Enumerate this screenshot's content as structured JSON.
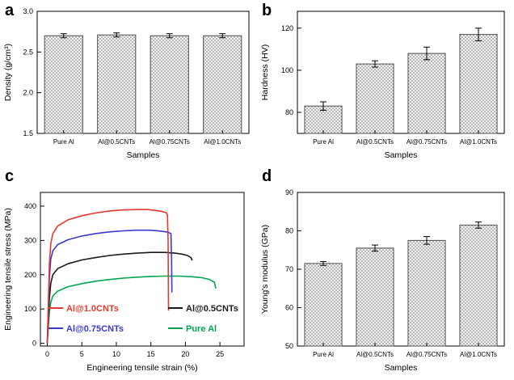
{
  "figure": {
    "background": "#ffffff",
    "panels": [
      {
        "letter": "a"
      },
      {
        "letter": "b"
      },
      {
        "letter": "c"
      },
      {
        "letter": "d"
      }
    ]
  },
  "colors": {
    "axis": "#000000",
    "bar_outline": "#4d4d4d",
    "hatch": "#9e9e9e",
    "error_bar": "#000000"
  },
  "chart_data": [
    {
      "id": "a",
      "type": "bar",
      "categories": [
        "Pure Al",
        "Al@0.5CNTs",
        "Al@0.75CNTs",
        "Al@1.0CNTs"
      ],
      "values": [
        2.7,
        2.71,
        2.7,
        2.7
      ],
      "errors": [
        0.025,
        0.025,
        0.025,
        0.025
      ],
      "xlabel": "Samples",
      "ylabel": "Density (g/cm³)",
      "ylim": [
        1.5,
        3.0
      ],
      "yticks": [
        1.5,
        2.0,
        2.5,
        3.0
      ],
      "ytick_decimals": 1,
      "grid": false
    },
    {
      "id": "b",
      "type": "bar",
      "categories": [
        "Pure Al",
        "Al@0.5CNTs",
        "Al@0.75CNTs",
        "Al@1.0CNTs"
      ],
      "values": [
        83,
        103,
        108,
        117
      ],
      "errors": [
        2,
        1.5,
        3,
        3
      ],
      "xlabel": "Samples",
      "ylabel": "Hardness (HV)",
      "ylim": [
        70,
        128
      ],
      "yticks": [
        80,
        100,
        120
      ],
      "ytick_decimals": 0,
      "grid": false
    },
    {
      "id": "c",
      "type": "line",
      "xlabel": "Engineering tensile strain (%)",
      "ylabel": "Engineering tensile stress (MPa)",
      "xlim": [
        -1,
        28.5
      ],
      "ylim": [
        -8,
        440
      ],
      "xticks": [
        0,
        5,
        10,
        15,
        20,
        25
      ],
      "yticks": [
        0,
        100,
        200,
        300,
        400
      ],
      "legend_position": "lower-left",
      "grid": false,
      "series": [
        {
          "name": "Pure Al",
          "color": "#00a650",
          "points": [
            [
              0,
              0
            ],
            [
              0.15,
              50
            ],
            [
              0.3,
              90
            ],
            [
              0.5,
              120
            ],
            [
              0.8,
              138
            ],
            [
              1.5,
              152
            ],
            [
              3,
              165
            ],
            [
              5,
              174
            ],
            [
              7,
              181
            ],
            [
              9,
              186
            ],
            [
              11,
              190
            ],
            [
              13,
              193
            ],
            [
              15,
              195
            ],
            [
              17,
              196
            ],
            [
              19,
              196
            ],
            [
              21,
              194
            ],
            [
              22.5,
              191
            ],
            [
              23.5,
              186
            ],
            [
              24.2,
              178
            ],
            [
              24.4,
              160
            ]
          ]
        },
        {
          "name": "Al@0.5CNTs",
          "color": "#1a1a1a",
          "points": [
            [
              0,
              0
            ],
            [
              0.15,
              70
            ],
            [
              0.3,
              130
            ],
            [
              0.5,
              175
            ],
            [
              0.8,
              200
            ],
            [
              1.5,
              218
            ],
            [
              3,
              232
            ],
            [
              5,
              243
            ],
            [
              7,
              250
            ],
            [
              9,
              256
            ],
            [
              11,
              260
            ],
            [
              13,
              263
            ],
            [
              15,
              265
            ],
            [
              17,
              265
            ],
            [
              18.5,
              263
            ],
            [
              19.5,
              260
            ],
            [
              20.3,
              256
            ],
            [
              20.8,
              250
            ],
            [
              21,
              242
            ]
          ]
        },
        {
          "name": "Al@0.75CNTs",
          "color": "#3a3ad1",
          "points": [
            [
              0,
              0
            ],
            [
              0.15,
              100
            ],
            [
              0.3,
              190
            ],
            [
              0.5,
              245
            ],
            [
              0.8,
              270
            ],
            [
              1.5,
              288
            ],
            [
              3,
              302
            ],
            [
              5,
              313
            ],
            [
              7,
              320
            ],
            [
              9,
              325
            ],
            [
              11,
              328
            ],
            [
              13,
              330
            ],
            [
              14.5,
              330
            ],
            [
              15.5,
              329
            ],
            [
              16.5,
              327
            ],
            [
              17.5,
              324
            ],
            [
              17.9,
              320
            ],
            [
              18,
              250
            ],
            [
              18.05,
              148
            ]
          ]
        },
        {
          "name": "Al@1.0CNTs",
          "color": "#e8372d",
          "points": [
            [
              0,
              0
            ],
            [
              0.15,
              120
            ],
            [
              0.3,
              230
            ],
            [
              0.5,
              290
            ],
            [
              0.8,
              320
            ],
            [
              1.5,
              342
            ],
            [
              3,
              360
            ],
            [
              5,
              372
            ],
            [
              7,
              380
            ],
            [
              9,
              386
            ],
            [
              11,
              389
            ],
            [
              13,
              390
            ],
            [
              14.5,
              390
            ],
            [
              15.5,
              388
            ],
            [
              16.5,
              385
            ],
            [
              17.2,
              381
            ],
            [
              17.4,
              375
            ],
            [
              17.5,
              300
            ],
            [
              17.55,
              95
            ]
          ]
        }
      ],
      "legend": [
        [
          "Al@1.0CNTs",
          "Al@0.5CNTs"
        ],
        [
          "Al@0.75CNTs",
          "Pure Al"
        ]
      ]
    },
    {
      "id": "d",
      "type": "bar",
      "categories": [
        "Pure Al",
        "Al@0.5CNTs",
        "Al@0.75CNTs",
        "Al@1.0CNTs"
      ],
      "values": [
        71.5,
        75.5,
        77.5,
        81.5
      ],
      "errors": [
        0.5,
        0.8,
        1.0,
        0.8
      ],
      "xlabel": "Samples",
      "ylabel": "Young's modulus (GPa)",
      "ylim": [
        50,
        90
      ],
      "yticks": [
        50,
        60,
        70,
        80,
        90
      ],
      "ytick_decimals": 0,
      "grid": false
    }
  ]
}
